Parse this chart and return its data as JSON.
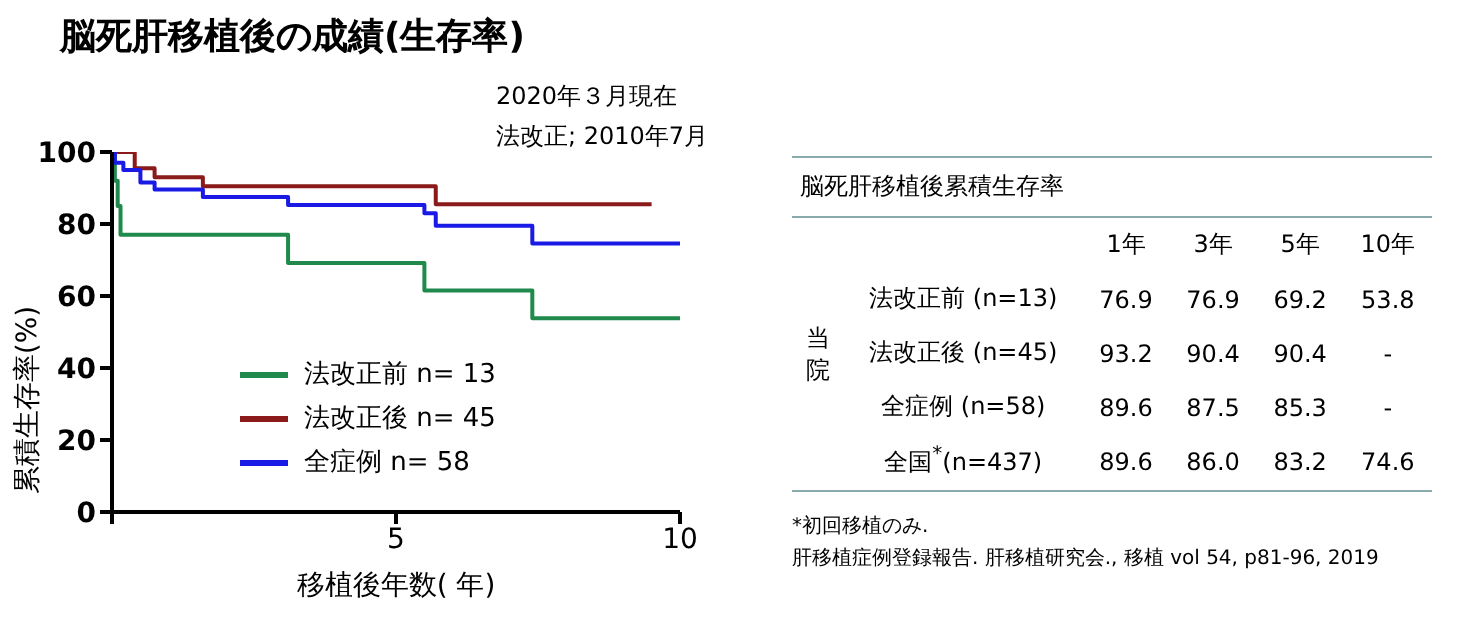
{
  "chart_data": [
    {
      "type": "step",
      "title": "脳死肝移植後の成績(生存率)",
      "xlabel": "移植後年数( 年)",
      "ylabel": "累積生存率(%)",
      "annotations": [
        "2020年３月現在",
        "法改正; 2010年7月"
      ],
      "xlim": [
        0,
        10
      ],
      "xticks": [
        {
          "value": 0,
          "label": null
        },
        5,
        10
      ],
      "ylim": [
        0,
        100
      ],
      "yticks": [
        0,
        20,
        40,
        60,
        80,
        100
      ],
      "legend": "bottom",
      "series": [
        {
          "name": "法改正前 n= 13",
          "color": "#1f8a4c",
          "x": [
            0,
            0.05,
            0.1,
            0.15,
            3.1,
            5.5,
            7.4,
            10
          ],
          "values": [
            100,
            92,
            85,
            77,
            69.2,
            61.5,
            53.8,
            53.8
          ]
        },
        {
          "name": "法改正後 n= 45",
          "color": "#8b1a1a",
          "x": [
            0,
            0.4,
            0.75,
            1.6,
            5.7,
            9.5
          ],
          "values": [
            100,
            95.5,
            93,
            90.5,
            85.5,
            85.5
          ]
        },
        {
          "name": "全症例 n= 58",
          "color": "#1a1ae6",
          "x": [
            0,
            0.05,
            0.2,
            0.5,
            0.75,
            1.6,
            3.1,
            5.5,
            5.7,
            7.4,
            10
          ],
          "values": [
            100,
            97,
            95,
            91.5,
            89.6,
            87.5,
            85.3,
            83,
            79.5,
            74.6,
            74.6
          ]
        }
      ]
    },
    {
      "type": "other",
      "title": "脳死肝移植後累積生存率",
      "categories": [
        "1年",
        "3年",
        "5年",
        "10年"
      ],
      "y_categories": [
        "法改正前 (n=13)",
        "法改正後 (n=45)",
        "全症例 (n=58)",
        "全国$^{*}$(n=437)"
      ],
      "cell_labels": [
        [
          "76.9",
          "76.9",
          "69.2",
          "53.8"
        ],
        [
          "93.2",
          "90.4",
          "90.4",
          "-"
        ],
        [
          "89.6",
          "87.5",
          "85.3",
          "-"
        ],
        [
          "89.6",
          "86.0",
          "83.2",
          "74.6"
        ]
      ],
      "annotations": [
        "当院",
        "*初回移植のみ.",
        "肝移植症例登録報告. 肝移植研究会., 移植 vol 54, p81-96, 2019"
      ]
    }
  ]
}
